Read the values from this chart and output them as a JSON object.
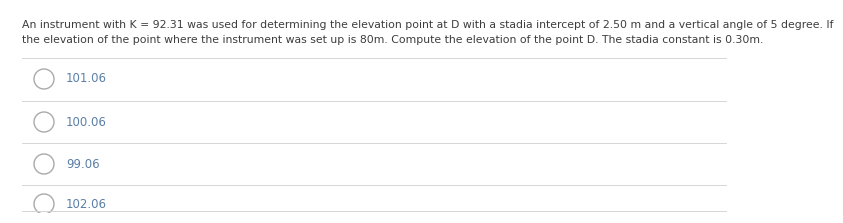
{
  "question_line1": "An instrument with K = 92.31 was used for determining the elevation point at D with a stadia intercept of 2.50 m and a vertical angle of 5 degree. If",
  "question_line2": "the elevation of the point where the instrument was set up is 80m. Compute the elevation of the point D. The stadia constant is 0.30m.",
  "options": [
    "101.06",
    "100.06",
    "99.06",
    "102.06"
  ],
  "bg_color": "#ffffff",
  "question_color": "#3d3d3d",
  "option_color": "#5b7fa6",
  "question_fontsize": 7.8,
  "option_fontsize": 8.5,
  "line_color": "#d0d0d0",
  "circle_color": "#aaaaaa"
}
